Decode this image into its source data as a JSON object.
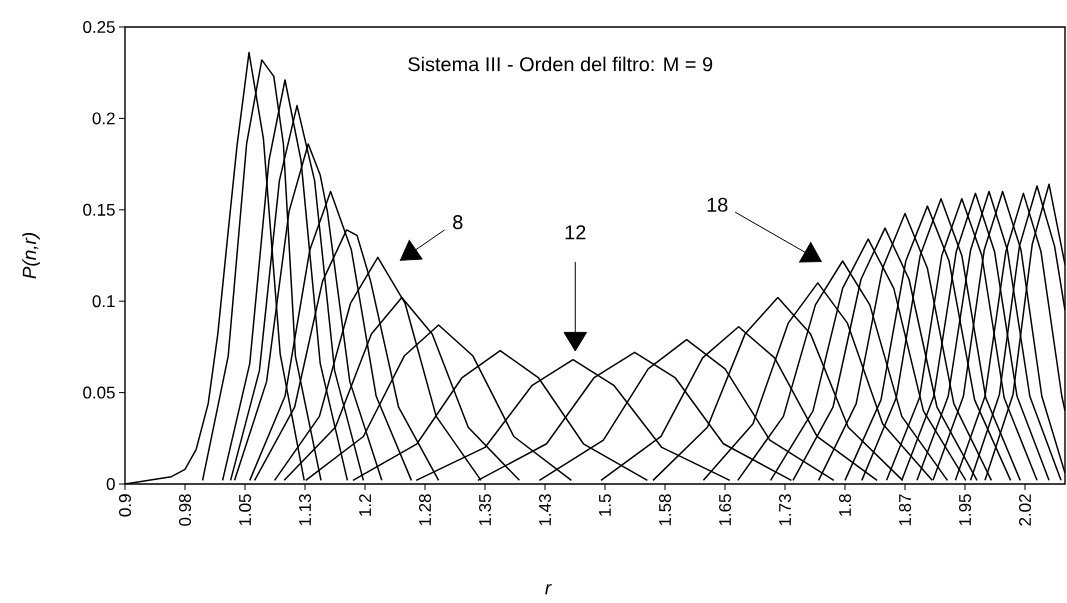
{
  "chart_data": {
    "type": "line",
    "title": "Sistema III - Orden del filtro: M = 9",
    "xlabel": "r",
    "ylabel": "P(n,r)",
    "xlim": [
      0.9,
      2.075
    ],
    "ylim": [
      0,
      0.25
    ],
    "xticks": [
      {
        "value": 0.9,
        "label": "0.9"
      },
      {
        "value": 0.975,
        "label": "0.98"
      },
      {
        "value": 1.05,
        "label": "1.05"
      },
      {
        "value": 1.125,
        "label": "1.13"
      },
      {
        "value": 1.2,
        "label": "1.2"
      },
      {
        "value": 1.275,
        "label": "1.28"
      },
      {
        "value": 1.35,
        "label": "1.35"
      },
      {
        "value": 1.425,
        "label": "1.43"
      },
      {
        "value": 1.5,
        "label": "1.5"
      },
      {
        "value": 1.575,
        "label": "1.58"
      },
      {
        "value": 1.65,
        "label": "1.65"
      },
      {
        "value": 1.725,
        "label": "1.73"
      },
      {
        "value": 1.8,
        "label": "1.8"
      },
      {
        "value": 1.875,
        "label": "1.87"
      },
      {
        "value": 1.95,
        "label": "1.95"
      },
      {
        "value": 2.025,
        "label": "2.02"
      }
    ],
    "yticks": [
      0,
      0.05,
      0.1,
      0.15,
      0.2,
      0.25
    ],
    "annotations": [
      "8",
      "12",
      "18"
    ],
    "series": [
      {
        "color": "#000000",
        "x": [
          0.9,
          0.958,
          0.975,
          0.989,
          1.004,
          1.016,
          1.028,
          1.04,
          1.055,
          1.073,
          1.094,
          1.124
        ],
        "values": [
          0,
          0.004,
          0.008,
          0.019,
          0.044,
          0.082,
          0.134,
          0.185,
          0.236,
          0.189,
          0.071,
          0.002
        ]
      },
      {
        "color": "#000000",
        "x": [
          0.997,
          1.029,
          1.052,
          1.071,
          1.086,
          1.098,
          1.113,
          1.145
        ],
        "values": [
          0.002,
          0.07,
          0.186,
          0.232,
          0.223,
          0.186,
          0.07,
          0.002
        ]
      },
      {
        "color": "#000000",
        "x": [
          1.022,
          1.056,
          1.08,
          1.1,
          1.12,
          1.144,
          1.178
        ],
        "values": [
          0.002,
          0.066,
          0.177,
          0.221,
          0.177,
          0.066,
          0.002
        ]
      },
      {
        "color": "#000000",
        "x": [
          1.032,
          1.068,
          1.093,
          1.115,
          1.137,
          1.162,
          1.198
        ],
        "values": [
          0.002,
          0.062,
          0.166,
          0.207,
          0.166,
          0.062,
          0.002
        ]
      },
      {
        "color": "#000000",
        "x": [
          1.037,
          1.077,
          1.105,
          1.129,
          1.144,
          1.153,
          1.181,
          1.221
        ],
        "values": [
          0.002,
          0.056,
          0.149,
          0.186,
          0.169,
          0.149,
          0.056,
          0.002
        ]
      },
      {
        "color": "#000000",
        "x": [
          1.056,
          1.1,
          1.131,
          1.157,
          1.183,
          1.214,
          1.258
        ],
        "values": [
          0.002,
          0.048,
          0.128,
          0.16,
          0.128,
          0.048,
          0.002
        ]
      },
      {
        "color": "#000000",
        "x": [
          1.062,
          1.112,
          1.147,
          1.177,
          1.19,
          1.207,
          1.242,
          1.292
        ],
        "values": [
          0.002,
          0.042,
          0.111,
          0.139,
          0.136,
          0.111,
          0.042,
          0.002
        ]
      },
      {
        "color": "#000000",
        "x": [
          1.087,
          1.143,
          1.182,
          1.216,
          1.25,
          1.289,
          1.345
        ],
        "values": [
          0.002,
          0.037,
          0.099,
          0.124,
          0.099,
          0.037,
          0.002
        ]
      },
      {
        "color": "#000000",
        "x": [
          1.099,
          1.163,
          1.208,
          1.246,
          1.284,
          1.329,
          1.393
        ],
        "values": [
          0.002,
          0.031,
          0.082,
          0.102,
          0.082,
          0.031,
          0.002
        ]
      },
      {
        "color": "#000000",
        "x": [
          1.126,
          1.198,
          1.249,
          1.292,
          1.335,
          1.386,
          1.458
        ],
        "values": [
          0.002,
          0.026,
          0.07,
          0.087,
          0.07,
          0.026,
          0.002
        ]
      },
      {
        "color": "#000000",
        "x": [
          1.185,
          1.265,
          1.321,
          1.369,
          1.417,
          1.473,
          1.553
        ],
        "values": [
          0.002,
          0.022,
          0.058,
          0.073,
          0.058,
          0.022,
          0.002
        ]
      },
      {
        "color": "#000000",
        "x": [
          1.264,
          1.35,
          1.409,
          1.46,
          1.511,
          1.571,
          1.656
        ],
        "values": [
          0.002,
          0.02,
          0.054,
          0.068,
          0.054,
          0.02,
          0.002
        ]
      },
      {
        "color": "#000000",
        "x": [
          1.341,
          1.427,
          1.486,
          1.537,
          1.588,
          1.648,
          1.733
        ],
        "values": [
          0.002,
          0.022,
          0.058,
          0.072,
          0.058,
          0.022,
          0.002
        ]
      },
      {
        "color": "#000000",
        "x": [
          1.418,
          1.498,
          1.554,
          1.602,
          1.65,
          1.706,
          1.786
        ],
        "values": [
          0.002,
          0.024,
          0.063,
          0.079,
          0.063,
          0.024,
          0.002
        ]
      },
      {
        "color": "#000000",
        "x": [
          1.495,
          1.57,
          1.622,
          1.667,
          1.712,
          1.765,
          1.84
        ],
        "values": [
          0.002,
          0.026,
          0.069,
          0.086,
          0.069,
          0.026,
          0.002
        ]
      },
      {
        "color": "#000000",
        "x": [
          1.56,
          1.628,
          1.675,
          1.716,
          1.757,
          1.804,
          1.872
        ],
        "values": [
          0.002,
          0.031,
          0.082,
          0.102,
          0.082,
          0.031,
          0.002
        ]
      },
      {
        "color": "#000000",
        "x": [
          1.623,
          1.685,
          1.729,
          1.766,
          1.803,
          1.847,
          1.909
        ],
        "values": [
          0.002,
          0.033,
          0.088,
          0.11,
          0.088,
          0.033,
          0.002
        ]
      },
      {
        "color": "#000000",
        "x": [
          1.666,
          1.723,
          1.763,
          1.797,
          1.831,
          1.871,
          1.928
        ],
        "values": [
          0.002,
          0.037,
          0.098,
          0.122,
          0.098,
          0.037,
          0.002
        ]
      },
      {
        "color": "#000000",
        "x": [
          1.707,
          1.76,
          1.797,
          1.829,
          1.861,
          1.898,
          1.951
        ],
        "values": [
          0.002,
          0.04,
          0.107,
          0.134,
          0.107,
          0.04,
          0.002
        ]
      },
      {
        "color": "#000000",
        "x": [
          1.735,
          1.785,
          1.82,
          1.85,
          1.88,
          1.915,
          1.965
        ],
        "values": [
          0.002,
          0.042,
          0.112,
          0.14,
          0.112,
          0.042,
          0.002
        ]
      },
      {
        "color": "#000000",
        "x": [
          1.767,
          1.814,
          1.847,
          1.875,
          1.903,
          1.936,
          1.983
        ],
        "values": [
          0.002,
          0.044,
          0.118,
          0.148,
          0.118,
          0.044,
          0.002
        ]
      },
      {
        "color": "#000000",
        "x": [
          1.8,
          1.845,
          1.876,
          1.903,
          1.93,
          1.962,
          2.007
        ],
        "values": [
          0.002,
          0.046,
          0.122,
          0.152,
          0.122,
          0.046,
          0.002
        ]
      },
      {
        "color": "#000000",
        "x": [
          1.821,
          1.864,
          1.894,
          1.92,
          1.946,
          1.976,
          2.019
        ],
        "values": [
          0.002,
          0.047,
          0.125,
          0.156,
          0.125,
          0.047,
          0.002
        ]
      },
      {
        "color": "#000000",
        "x": [
          1.852,
          1.893,
          1.921,
          1.946,
          1.971,
          1.999,
          2.04
        ],
        "values": [
          0.002,
          0.047,
          0.125,
          0.156,
          0.125,
          0.047,
          0.002
        ]
      },
      {
        "color": "#000000",
        "x": [
          1.871,
          1.911,
          1.939,
          1.963,
          1.987,
          2.015,
          2.055
        ],
        "values": [
          0.002,
          0.048,
          0.127,
          0.159,
          0.127,
          0.048,
          0.002
        ]
      },
      {
        "color": "#000000",
        "x": [
          1.89,
          1.929,
          1.957,
          1.98,
          2.003,
          2.031,
          2.07
        ],
        "values": [
          0.002,
          0.048,
          0.128,
          0.16,
          0.128,
          0.048,
          0.002
        ]
      },
      {
        "color": "#000000",
        "x": [
          1.91,
          1.948,
          1.974,
          1.997,
          2.02,
          2.046,
          2.075
        ],
        "values": [
          0.002,
          0.048,
          0.128,
          0.16,
          0.128,
          0.048,
          0.006
        ]
      },
      {
        "color": "#000000",
        "x": [
          1.938,
          1.975,
          2.001,
          2.023,
          2.045,
          2.071,
          2.075
        ],
        "values": [
          0.002,
          0.048,
          0.127,
          0.159,
          0.127,
          0.048,
          0.04
        ]
      },
      {
        "color": "#000000",
        "x": [
          1.957,
          1.993,
          2.018,
          2.04,
          2.062,
          2.075
        ],
        "values": [
          0.002,
          0.049,
          0.13,
          0.163,
          0.13,
          0.095
        ]
      },
      {
        "color": "#000000",
        "x": [
          1.975,
          2.01,
          2.034,
          2.055,
          2.075
        ],
        "values": [
          0.002,
          0.049,
          0.131,
          0.164,
          0.12
        ]
      }
    ]
  }
}
